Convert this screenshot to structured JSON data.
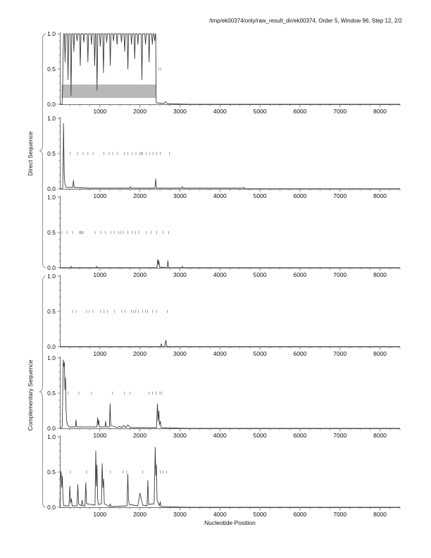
{
  "page": {
    "title": "/tmp/ek00374/only/raw_result_dir/ek00374, Order 5, Window 96, Step 12, 2/2",
    "xlabel": "Nucleotide Position",
    "direct_label": "Direct Sequence",
    "complementary_label": "Complementary Sequence"
  },
  "colors": {
    "curve": "#3c3c3c",
    "marker": "#9c9c9c",
    "band": "#b8b8b8",
    "axis": "#6e6e6e",
    "text": "#111111",
    "brace": "#777777"
  },
  "chart_data": {
    "type": "line",
    "title": "/tmp/ek00374/only/raw_result_dir/ek00374, Order 5, Window 96, Step 12, 2/2",
    "xlabel": "Nucleotide Position",
    "ylabel_groups": [
      "Direct Sequence",
      "Complementary Sequence"
    ],
    "xlim": [
      0,
      8500
    ],
    "ylim": [
      0,
      1
    ],
    "xticks": [
      1000,
      2000,
      3000,
      4000,
      5000,
      6000,
      7000,
      8000
    ],
    "yticks": [
      0,
      0.5,
      1
    ],
    "ytick_labels": [
      "0.0",
      "0.5",
      "1.0"
    ],
    "x_minor_step": 250,
    "y_minor_step": 0.1,
    "grid": false,
    "legend": "none",
    "subplots": [
      {
        "name": "direct-frame-1",
        "group": "Direct Sequence",
        "band": {
          "x0": 40,
          "x1": 2410,
          "y0": 0.09,
          "y1": 0.28
        },
        "marker_y": 0.5,
        "marker_x": [
          2470,
          2520
        ],
        "line": [
          [
            0,
            0
          ],
          [
            55,
            0
          ],
          [
            70,
            0.25
          ],
          [
            80,
            0.7
          ],
          [
            95,
            1
          ],
          [
            112,
            1
          ],
          [
            130,
            0.6
          ],
          [
            148,
            1
          ],
          [
            187,
            1
          ],
          [
            205,
            0.35
          ],
          [
            223,
            1
          ],
          [
            262,
            1
          ],
          [
            280,
            0.12
          ],
          [
            298,
            1
          ],
          [
            332,
            1
          ],
          [
            350,
            0.75
          ],
          [
            368,
            1
          ],
          [
            412,
            1
          ],
          [
            430,
            0.9
          ],
          [
            448,
            1
          ],
          [
            492,
            1
          ],
          [
            510,
            0.55
          ],
          [
            528,
            1
          ],
          [
            582,
            1
          ],
          [
            600,
            0.88
          ],
          [
            618,
            1
          ],
          [
            682,
            1
          ],
          [
            700,
            0.6
          ],
          [
            718,
            1
          ],
          [
            772,
            1
          ],
          [
            790,
            0.85
          ],
          [
            808,
            1
          ],
          [
            852,
            1
          ],
          [
            870,
            0.55
          ],
          [
            888,
            1
          ],
          [
            912,
            1
          ],
          [
            930,
            0.2
          ],
          [
            948,
            1
          ],
          [
            992,
            1
          ],
          [
            1010,
            0.82
          ],
          [
            1028,
            1
          ],
          [
            1072,
            1
          ],
          [
            1090,
            0.45
          ],
          [
            1108,
            1
          ],
          [
            1152,
            1
          ],
          [
            1170,
            0.88
          ],
          [
            1188,
            1
          ],
          [
            1242,
            1
          ],
          [
            1260,
            0.55
          ],
          [
            1278,
            1
          ],
          [
            1322,
            1
          ],
          [
            1340,
            0.9
          ],
          [
            1358,
            1
          ],
          [
            1412,
            1
          ],
          [
            1430,
            0.85
          ],
          [
            1448,
            1
          ],
          [
            1522,
            1
          ],
          [
            1540,
            0.88
          ],
          [
            1558,
            1
          ],
          [
            1602,
            1
          ],
          [
            1620,
            0.75
          ],
          [
            1638,
            1
          ],
          [
            1682,
            1
          ],
          [
            1700,
            0.5
          ],
          [
            1718,
            1
          ],
          [
            1772,
            1
          ],
          [
            1790,
            0.85
          ],
          [
            1808,
            1
          ],
          [
            1852,
            1
          ],
          [
            1870,
            0.65
          ],
          [
            1888,
            1
          ],
          [
            1932,
            1
          ],
          [
            1950,
            0.85
          ],
          [
            1968,
            1
          ],
          [
            2032,
            1
          ],
          [
            2050,
            0.35
          ],
          [
            2068,
            1
          ],
          [
            2122,
            1
          ],
          [
            2140,
            0.85
          ],
          [
            2158,
            1
          ],
          [
            2212,
            1
          ],
          [
            2230,
            0.6
          ],
          [
            2248,
            1
          ],
          [
            2292,
            1
          ],
          [
            2310,
            0.85
          ],
          [
            2328,
            1
          ],
          [
            2352,
            1
          ],
          [
            2370,
            0.9
          ],
          [
            2388,
            1
          ],
          [
            2396,
            1
          ],
          [
            2402,
            0.35
          ],
          [
            2408,
            0.02
          ],
          [
            2600,
            0.01
          ],
          [
            2640,
            0.04
          ],
          [
            2680,
            0.01
          ],
          [
            3200,
            0
          ],
          [
            8500,
            0
          ]
        ]
      },
      {
        "name": "direct-frame-2",
        "group": "Direct Sequence",
        "band": null,
        "marker_y": 0.5,
        "marker_x": [
          260,
          440,
          580,
          700,
          830,
          1100,
          1230,
          1320,
          1440,
          1610,
          1700,
          1810,
          1900,
          2000,
          2035,
          2065,
          2160,
          2250,
          2330,
          2420,
          2510,
          2740
        ],
        "line": [
          [
            0,
            0
          ],
          [
            70,
            0.01
          ],
          [
            82,
            0.4
          ],
          [
            92,
            0.93
          ],
          [
            102,
            0.45
          ],
          [
            112,
            0.15
          ],
          [
            128,
            0.06
          ],
          [
            160,
            0.02
          ],
          [
            320,
            0.02
          ],
          [
            340,
            0.12
          ],
          [
            358,
            0.02
          ],
          [
            700,
            0.01
          ],
          [
            1740,
            0.01
          ],
          [
            1760,
            0.03
          ],
          [
            1780,
            0.01
          ],
          [
            2375,
            0.01
          ],
          [
            2395,
            0.14
          ],
          [
            2415,
            0.01
          ],
          [
            3040,
            0.01
          ],
          [
            3060,
            0.03
          ],
          [
            3080,
            0.01
          ],
          [
            4580,
            0.01
          ],
          [
            4600,
            0.02
          ],
          [
            4620,
            0
          ],
          [
            8500,
            0
          ]
        ]
      },
      {
        "name": "direct-frame-3",
        "group": "Direct Sequence",
        "band": null,
        "marker_y": 0.5,
        "marker_x": [
          50,
          180,
          320,
          490,
          520,
          550,
          580,
          880,
          1020,
          1140,
          1280,
          1360,
          1460,
          1510,
          1580,
          1700,
          1810,
          1890,
          1970,
          2160,
          2280,
          2420,
          2580,
          2720
        ],
        "line": [
          [
            0,
            0
          ],
          [
            260,
            0
          ],
          [
            280,
            0.02
          ],
          [
            300,
            0
          ],
          [
            900,
            0
          ],
          [
            920,
            0.02
          ],
          [
            940,
            0
          ],
          [
            2425,
            0
          ],
          [
            2445,
            0.12
          ],
          [
            2460,
            0.04
          ],
          [
            2475,
            0.1
          ],
          [
            2492,
            0.01
          ],
          [
            2680,
            0
          ],
          [
            2700,
            0.1
          ],
          [
            2718,
            0
          ],
          [
            3040,
            0
          ],
          [
            3060,
            0.02
          ],
          [
            3080,
            0
          ],
          [
            8500,
            0
          ]
        ]
      },
      {
        "name": "complementary-frame-1",
        "group": "Complementary Sequence",
        "band": null,
        "marker_y": 0.5,
        "marker_x": [
          316,
          404,
          667,
          737,
          825,
          1018,
          1105,
          1193,
          1368,
          1544,
          1632,
          1789,
          1842,
          1895,
          1965,
          2070,
          2140,
          2193,
          2316,
          2421,
          2684
        ],
        "line": [
          [
            0,
            0
          ],
          [
            1000,
            0
          ],
          [
            2515,
            0
          ],
          [
            2535,
            0.04
          ],
          [
            2555,
            0
          ],
          [
            2620,
            0
          ],
          [
            2648,
            0.09
          ],
          [
            2675,
            0
          ],
          [
            8500,
            0
          ]
        ]
      },
      {
        "name": "complementary-frame-2",
        "group": "Complementary Sequence",
        "band": null,
        "marker_y": 0.5,
        "marker_x": [
          210,
          474,
          790,
          1316,
          1614,
          1754,
          2228,
          2316,
          2404,
          2500,
          2540
        ],
        "line": [
          [
            0,
            0
          ],
          [
            58,
            0.02
          ],
          [
            72,
            0.5
          ],
          [
            84,
            0.97
          ],
          [
            98,
            0.88
          ],
          [
            112,
            0.94
          ],
          [
            126,
            0.55
          ],
          [
            140,
            0.72
          ],
          [
            155,
            0.28
          ],
          [
            170,
            0.1
          ],
          [
            188,
            0.05
          ],
          [
            230,
            0.02
          ],
          [
            388,
            0.02
          ],
          [
            404,
            0.12
          ],
          [
            420,
            0.02
          ],
          [
            928,
            0.02
          ],
          [
            944,
            0.15
          ],
          [
            958,
            0.05
          ],
          [
            972,
            0.12
          ],
          [
            988,
            0.02
          ],
          [
            1128,
            0.02
          ],
          [
            1144,
            0.1
          ],
          [
            1160,
            0.02
          ],
          [
            1238,
            0.02
          ],
          [
            1254,
            0.35
          ],
          [
            1272,
            0.04
          ],
          [
            1440,
            0.01
          ],
          [
            1500,
            0.03
          ],
          [
            1545,
            0.01
          ],
          [
            1600,
            0.04
          ],
          [
            1650,
            0.01
          ],
          [
            1700,
            0.05
          ],
          [
            1755,
            0.01
          ],
          [
            2415,
            0.01
          ],
          [
            2438,
            0.35
          ],
          [
            2455,
            0.1
          ],
          [
            2472,
            0.25
          ],
          [
            2492,
            0.05
          ],
          [
            2512,
            0.1
          ],
          [
            2532,
            0.01
          ],
          [
            3200,
            0
          ],
          [
            8500,
            0
          ]
        ]
      },
      {
        "name": "complementary-frame-3",
        "group": "Complementary Sequence",
        "band": null,
        "marker_y": 0.5,
        "marker_x": [
          30,
          263,
          667,
          1053,
          1263,
          1579,
          1667,
          2070,
          2509,
          2579,
          2667
        ],
        "line": [
          [
            0,
            0
          ],
          [
            15,
            0.42
          ],
          [
            32,
            0.5
          ],
          [
            48,
            0.28
          ],
          [
            62,
            0.44
          ],
          [
            80,
            0.1
          ],
          [
            100,
            0.02
          ],
          [
            228,
            0.02
          ],
          [
            248,
            0.3
          ],
          [
            268,
            0.06
          ],
          [
            288,
            0.12
          ],
          [
            308,
            0.02
          ],
          [
            428,
            0.02
          ],
          [
            448,
            0.32
          ],
          [
            468,
            0.05
          ],
          [
            538,
            0.02
          ],
          [
            558,
            0.1
          ],
          [
            578,
            0.02
          ],
          [
            628,
            0.02
          ],
          [
            648,
            0.35
          ],
          [
            668,
            0.05
          ],
          [
            878,
            0.03
          ],
          [
            898,
            0.8
          ],
          [
            914,
            0.3
          ],
          [
            928,
            0.6
          ],
          [
            944,
            0.12
          ],
          [
            962,
            0.04
          ],
          [
            1038,
            0.05
          ],
          [
            1058,
            0.62
          ],
          [
            1076,
            0.28
          ],
          [
            1092,
            0.4
          ],
          [
            1110,
            0.05
          ],
          [
            1238,
            0.01
          ],
          [
            1258,
            0.05
          ],
          [
            1278,
            0.01
          ],
          [
            1678,
            0.02
          ],
          [
            1698,
            0.47
          ],
          [
            1714,
            0.12
          ],
          [
            1732,
            0.04
          ],
          [
            1945,
            0.02
          ],
          [
            1975,
            0.1
          ],
          [
            2000,
            0.2
          ],
          [
            2025,
            0.14
          ],
          [
            2048,
            0.08
          ],
          [
            2070,
            0.03
          ],
          [
            2178,
            0.02
          ],
          [
            2198,
            0.38
          ],
          [
            2218,
            0.04
          ],
          [
            2355,
            0.05
          ],
          [
            2382,
            0.85
          ],
          [
            2398,
            0.45
          ],
          [
            2412,
            0.6
          ],
          [
            2428,
            0.1
          ],
          [
            2488,
            0.02
          ],
          [
            2508,
            0.08
          ],
          [
            2528,
            0.01
          ],
          [
            3200,
            0
          ],
          [
            8500,
            0
          ]
        ]
      }
    ]
  }
}
